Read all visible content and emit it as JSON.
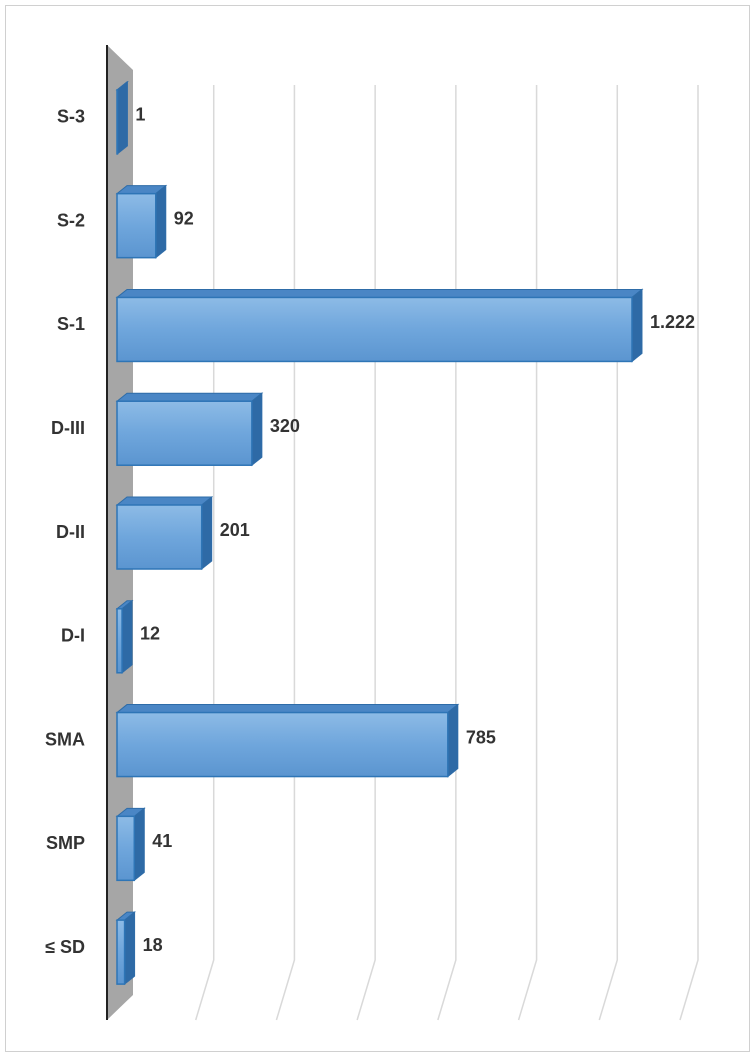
{
  "chart_data": {
    "type": "bar",
    "orientation": "horizontal",
    "categories": [
      "S-3",
      "S-2",
      "S-1",
      "D-III",
      "D-II",
      "D-I",
      "SMA",
      "SMP",
      "≤ SD"
    ],
    "values": [
      1,
      92,
      1222,
      320,
      201,
      12,
      785,
      41,
      18
    ],
    "value_labels": [
      "1",
      "92",
      "1.222",
      "320",
      "201",
      "12",
      "785",
      "41",
      "18"
    ],
    "color": "#5b9bd5",
    "xlim": [
      0,
      1400
    ],
    "xticks": [
      0,
      200,
      400,
      600,
      800,
      1000,
      1200,
      1400
    ],
    "grid": true
  }
}
